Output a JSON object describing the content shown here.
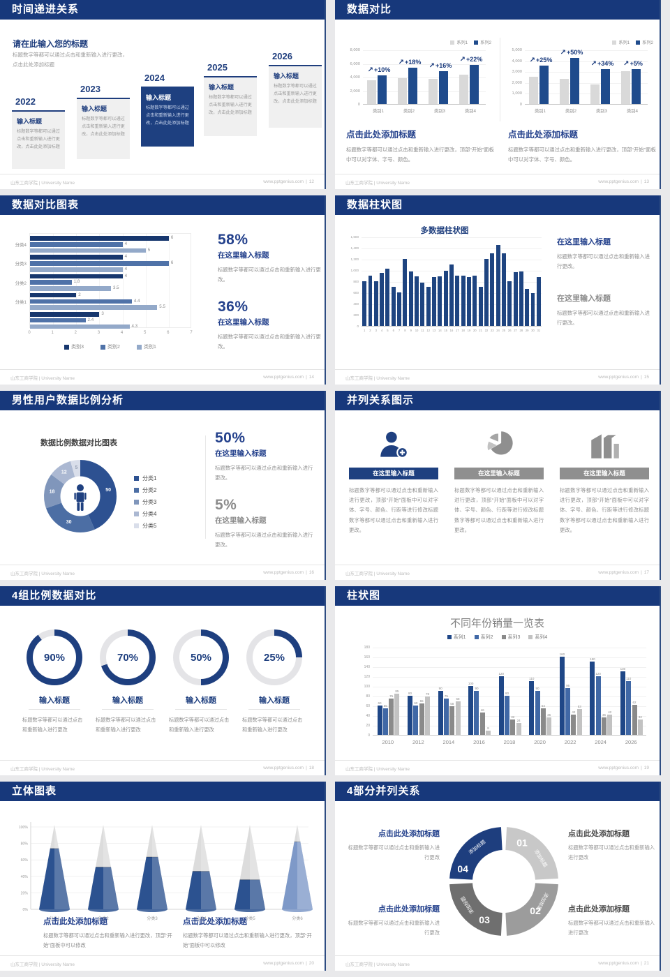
{
  "footer": {
    "left": "山东工商学院 | University Name",
    "site": "www.pptgenius.com"
  },
  "colors": {
    "header_navy": "#17387B",
    "accent_navy": "#1F4B8C",
    "gray_bar": "#D9D9D9"
  },
  "slides": {
    "s1": {
      "title": "时间递进关系",
      "page": "12",
      "heading": "请在此输入您的标题",
      "heading_body": "标题数字等都可以通过点击和重新输入进行更改，点击此处添加标题",
      "years": [
        "2022",
        "2023",
        "2024",
        "2025",
        "2026"
      ],
      "item_title": "输入标题",
      "item_body": "标题数字等都可以通过点击和重新输入进行更改，点击此处添加标题",
      "highlight_index": 2
    },
    "s2": {
      "title": "数据对比",
      "page": "13",
      "arrow_icon": "↗",
      "legend": [
        {
          "label": "系列1",
          "color": "#D9D9D9"
        },
        {
          "label": "系列2",
          "color": "#1F4B8C"
        }
      ],
      "charts": [
        {
          "categories": [
            "类别1",
            "类别2",
            "类别3",
            "类别4"
          ],
          "series1": [
            3500,
            3800,
            3700,
            4300
          ],
          "series2": [
            4200,
            5300,
            4800,
            5700
          ],
          "growth": [
            "+10%",
            "+18%",
            "+16%",
            "+22%"
          ],
          "ymax": 8000,
          "yticks": [
            "0",
            "2,000",
            "4,000",
            "6,000",
            "8,000"
          ]
        },
        {
          "categories": [
            "类别1",
            "类别2",
            "类别3",
            "类别4"
          ],
          "series1": [
            2500,
            2300,
            1800,
            3000
          ],
          "series2": [
            3500,
            4200,
            3200,
            3200
          ],
          "growth": [
            "+25%",
            "+50%",
            "+34%",
            "+5%"
          ],
          "ymax": 5000,
          "yticks": [
            "0",
            "1,000",
            "2,000",
            "3,000",
            "4,000",
            "5,000"
          ]
        }
      ],
      "caption_title": "点击此处添加标题",
      "caption_body": "标题数字等都可以通过点击和重新输入进行更改，顶部“开始”面板中可以对字体、字号、颜色。"
    },
    "s3": {
      "title": "数据对比图表",
      "page": "14",
      "groups": [
        "分类4",
        "分类3",
        "分类2",
        "分类1",
        ""
      ],
      "series": [
        {
          "name": "类别3",
          "color": "#17376E",
          "values": [
            6,
            4,
            4,
            2,
            3
          ]
        },
        {
          "name": "类别2",
          "color": "#4F72A8",
          "values": [
            4,
            6,
            1.8,
            4.4,
            2.4
          ]
        },
        {
          "name": "类别1",
          "color": "#93A9C9",
          "values": [
            5,
            4,
            3.5,
            5.5,
            4.3
          ]
        }
      ],
      "xticks": [
        "0",
        "1",
        "2",
        "3",
        "4",
        "5",
        "6",
        "7"
      ],
      "xmax": 7,
      "stats": [
        {
          "value": "58%",
          "label": "在这里输入标题",
          "body": "标题数字等都可以通过点击和重新输入进行更改。",
          "muted": false
        },
        {
          "value": "36%",
          "label": "在这里输入标题",
          "body": "标题数字等都可以通过点击和重新输入进行更改。",
          "muted": false
        }
      ]
    },
    "s4": {
      "title": "数据柱状图",
      "page": "15",
      "chart_title": "多数据柱状图",
      "values": [
        800,
        900,
        800,
        950,
        1020,
        700,
        600,
        1200,
        980,
        890,
        780,
        700,
        880,
        890,
        990,
        1100,
        900,
        900,
        870,
        900,
        700,
        1200,
        1300,
        1450,
        1300,
        800,
        960,
        970,
        660,
        590,
        870
      ],
      "ymax": 1600,
      "yticks": [
        "0",
        "200",
        "400",
        "600",
        "800",
        "1,000",
        "1,200",
        "1,400",
        "1,600"
      ],
      "blocks": [
        {
          "label": "在这里输入标题",
          "body": "标题数字等都可以通过点击和重新输入进行更改。",
          "muted": false
        },
        {
          "label": "在这里输入标题",
          "body": "标题数字等都可以通过点击和重新输入进行更改。",
          "muted": true
        }
      ]
    },
    "s5": {
      "title": "男性用户数据比例分析",
      "page": "16",
      "chart_title": "数据比例数据对比图表",
      "donut": {
        "values": [
          50,
          30,
          18,
          12,
          5
        ],
        "colors": [
          "#2D5191",
          "#4C6EA4",
          "#8096BB",
          "#ABB8D2",
          "#D9DEEA"
        ],
        "legend": [
          "分类1",
          "分类2",
          "分类3",
          "分类4",
          "分类5"
        ]
      },
      "stats": [
        {
          "value": "50%",
          "label": "在这里输入标题",
          "body": "标题数字等都可以通过点击和重新输入进行更改。",
          "muted": false
        },
        {
          "value": "5%",
          "label": "在这里输入标题",
          "body": "标题数字等都可以通过点击和重新输入进行更改。",
          "muted": true
        }
      ]
    },
    "s6": {
      "title": "并列关系图示",
      "page": "17",
      "columns": [
        {
          "icon": "person-plus",
          "accent": true
        },
        {
          "icon": "pie-3d",
          "accent": false
        },
        {
          "icon": "building",
          "accent": false
        }
      ],
      "column_title": "在这里输入标题",
      "column_body": "标题数字等都可以通过点击和重新输入进行更改，顶部“开始”面板中可以对字体、字号、颜色、行距等进行修改标题数字等都可以通过点击和重新输入进行更改。"
    },
    "s7": {
      "title": "4组比例数据对比",
      "page": "18",
      "rings": [
        {
          "percent": 90
        },
        {
          "percent": 70
        },
        {
          "percent": 50
        },
        {
          "percent": 25
        }
      ],
      "ring_label": "输入标题",
      "ring_body": "标题数字等都可以通过点击和重新输入进行更改"
    },
    "s8": {
      "title": "柱状图",
      "page": "19",
      "chart_title": "不同年份销量一览表",
      "categories": [
        "2010",
        "2012",
        "2014",
        "2016",
        "2018",
        "2020",
        "2022",
        "2024",
        "2026"
      ],
      "series": [
        {
          "name": "系列1",
          "color": "#1F4787",
          "values": [
            60,
            80,
            90,
            100,
            120,
            110,
            160,
            150,
            130
          ]
        },
        {
          "name": "系列2",
          "color": "#4068A6",
          "values": [
            55,
            60,
            75,
            90,
            80,
            90,
            96,
            120,
            110
          ]
        },
        {
          "name": "系列3",
          "color": "#8A8A8A",
          "values": [
            75,
            65,
            58,
            46,
            32,
            54,
            42,
            36,
            62
          ]
        },
        {
          "name": "系列4",
          "color": "#C2C2C2",
          "values": [
            85,
            78,
            68,
            8,
            24,
            36,
            53,
            42,
            32
          ]
        }
      ],
      "ymax": 180,
      "yticks": [
        "0",
        "20",
        "40",
        "60",
        "80",
        "100",
        "120",
        "140",
        "160",
        "180"
      ]
    },
    "s9": {
      "title": "立体图表",
      "page": "20",
      "categories": [
        "分类1",
        "分类2",
        "分类3",
        "分类4",
        "分类5",
        "分类6"
      ],
      "fills": [
        72,
        50,
        62,
        45,
        35,
        80
      ],
      "cone_colors": [
        "#2C5290",
        "#2C5290",
        "#2C5290",
        "#2C5290",
        "#2C5290",
        "#7E99C8"
      ],
      "yticks": [
        "0%",
        "20%",
        "40%",
        "60%",
        "80%",
        "100%"
      ],
      "caption_title": "点击此处添加标题",
      "caption_body": "标题数字等都可以通过点击和重新输入进行更改，顶部“开始”面板中可以修改"
    },
    "s10": {
      "title": "4部分并列关系",
      "page": "21",
      "segments": [
        {
          "num": "01",
          "color": "#C8C8C8"
        },
        {
          "num": "02",
          "color": "#9C9C9C"
        },
        {
          "num": "03",
          "color": "#6F6F6F"
        },
        {
          "num": "04",
          "color": "#1E3E7E"
        }
      ],
      "segment_label": "添加标题",
      "blocks_title": "点击此处添加标题",
      "blocks_body": "标题数字等都可以通过点击和重新输入进行更改"
    }
  }
}
